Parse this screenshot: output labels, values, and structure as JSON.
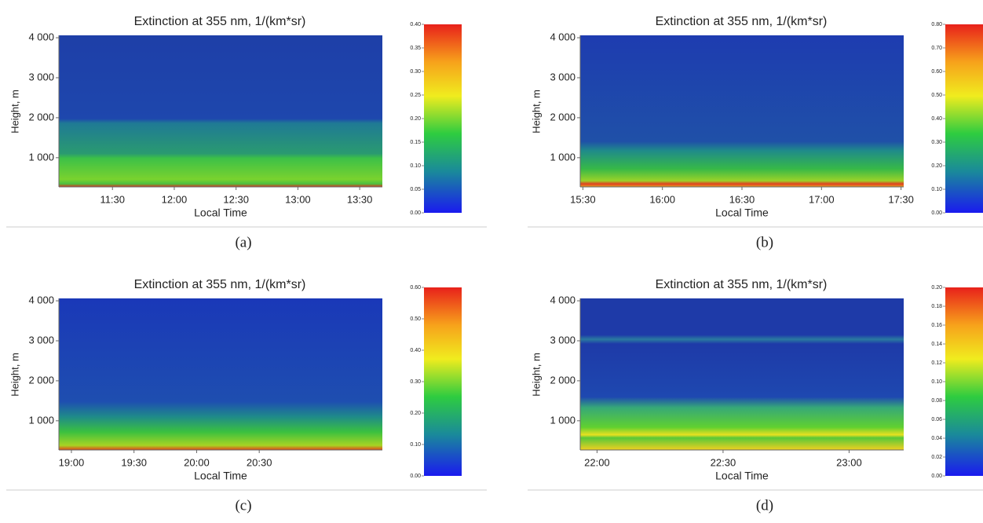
{
  "chart_data": [
    {
      "type": "heatmap",
      "title": "Extinction at 355 nm, 1/(km*sr)",
      "xlabel": "Local Time",
      "ylabel": "Height, m",
      "caption": "(a)",
      "xlim": [
        "11:04",
        "13:41"
      ],
      "xticks": [
        "11:30",
        "12:00",
        "12:30",
        "13:00",
        "13:30"
      ],
      "ylim": [
        270,
        4060
      ],
      "yticks": [
        {
          "value": 1000,
          "label": "1 000"
        },
        {
          "value": 2000,
          "label": "2 000"
        },
        {
          "value": 3000,
          "label": "3 000"
        },
        {
          "value": 4000,
          "label": "4 000"
        }
      ],
      "zlim": [
        0,
        0.4
      ],
      "zticks": [
        {
          "value": 0,
          "label": "0.00"
        },
        {
          "value": 0.05,
          "label": "0.05"
        },
        {
          "value": 0.1,
          "label": "0.10"
        },
        {
          "value": 0.15,
          "label": "0.15"
        },
        {
          "value": 0.2,
          "label": "0.20"
        },
        {
          "value": 0.25,
          "label": "0.25"
        },
        {
          "value": 0.3,
          "label": "0.30"
        },
        {
          "value": 0.35,
          "label": "0.35"
        },
        {
          "value": 0.4,
          "label": "0.40"
        }
      ]
    },
    {
      "type": "heatmap",
      "title": "Extinction at 355 nm, 1/(km*sr)",
      "xlabel": "Local Time",
      "ylabel": "Height, m",
      "caption": "(b)",
      "xlim": [
        "15:29",
        "17:31"
      ],
      "xticks": [
        "15:30",
        "16:00",
        "16:30",
        "17:00",
        "17:30"
      ],
      "ylim": [
        270,
        4060
      ],
      "yticks": [
        {
          "value": 1000,
          "label": "1 000"
        },
        {
          "value": 2000,
          "label": "2 000"
        },
        {
          "value": 3000,
          "label": "3 000"
        },
        {
          "value": 4000,
          "label": "4 000"
        }
      ],
      "zlim": [
        0,
        0.8
      ],
      "zticks": [
        {
          "value": 0,
          "label": "0.00"
        },
        {
          "value": 0.1,
          "label": "0.10"
        },
        {
          "value": 0.2,
          "label": "0.20"
        },
        {
          "value": 0.3,
          "label": "0.30"
        },
        {
          "value": 0.4,
          "label": "0.40"
        },
        {
          "value": 0.5,
          "label": "0.50"
        },
        {
          "value": 0.6,
          "label": "0.60"
        },
        {
          "value": 0.7,
          "label": "0.70"
        },
        {
          "value": 0.8,
          "label": "0.80"
        }
      ]
    },
    {
      "type": "heatmap",
      "title": "Extinction at 355 nm, 1/(km*sr)",
      "xlabel": "Local Time",
      "ylabel": "Height, m",
      "caption": "(c)",
      "xlim": [
        "18:54",
        "21:29"
      ],
      "xticks": [
        "19:00",
        "19:30",
        "20:00",
        "20:30"
      ],
      "ylim": [
        270,
        4060
      ],
      "yticks": [
        {
          "value": 1000,
          "label": "1 000"
        },
        {
          "value": 2000,
          "label": "2 000"
        },
        {
          "value": 3000,
          "label": "3 000"
        },
        {
          "value": 4000,
          "label": "4 000"
        }
      ],
      "zlim": [
        0,
        0.6
      ],
      "zticks": [
        {
          "value": 0,
          "label": "0.00"
        },
        {
          "value": 0.1,
          "label": "0.10"
        },
        {
          "value": 0.2,
          "label": "0.20"
        },
        {
          "value": 0.3,
          "label": "0.30"
        },
        {
          "value": 0.4,
          "label": "0.40"
        },
        {
          "value": 0.5,
          "label": "0.50"
        },
        {
          "value": 0.6,
          "label": "0.60"
        }
      ]
    },
    {
      "type": "heatmap",
      "title": "Extinction at 355 nm, 1/(km*sr)",
      "xlabel": "Local Time",
      "ylabel": "Height, m",
      "caption": "(d)",
      "xlim": [
        "21:56",
        "23:13"
      ],
      "xticks": [
        "22:00",
        "22:30",
        "23:00"
      ],
      "ylim": [
        270,
        4060
      ],
      "yticks": [
        {
          "value": 1000,
          "label": "1 000"
        },
        {
          "value": 2000,
          "label": "2 000"
        },
        {
          "value": 3000,
          "label": "3 000"
        },
        {
          "value": 4000,
          "label": "4 000"
        }
      ],
      "zlim": [
        0,
        0.2
      ],
      "zticks": [
        {
          "value": 0,
          "label": "0.00"
        },
        {
          "value": 0.02,
          "label": "0.02"
        },
        {
          "value": 0.04,
          "label": "0.04"
        },
        {
          "value": 0.06,
          "label": "0.06"
        },
        {
          "value": 0.08,
          "label": "0.08"
        },
        {
          "value": 0.1,
          "label": "0.10"
        },
        {
          "value": 0.12,
          "label": "0.12"
        },
        {
          "value": 0.14,
          "label": "0.14"
        },
        {
          "value": 0.16,
          "label": "0.16"
        },
        {
          "value": 0.18,
          "label": "0.18"
        },
        {
          "value": 0.2,
          "label": "0.20"
        }
      ]
    }
  ]
}
